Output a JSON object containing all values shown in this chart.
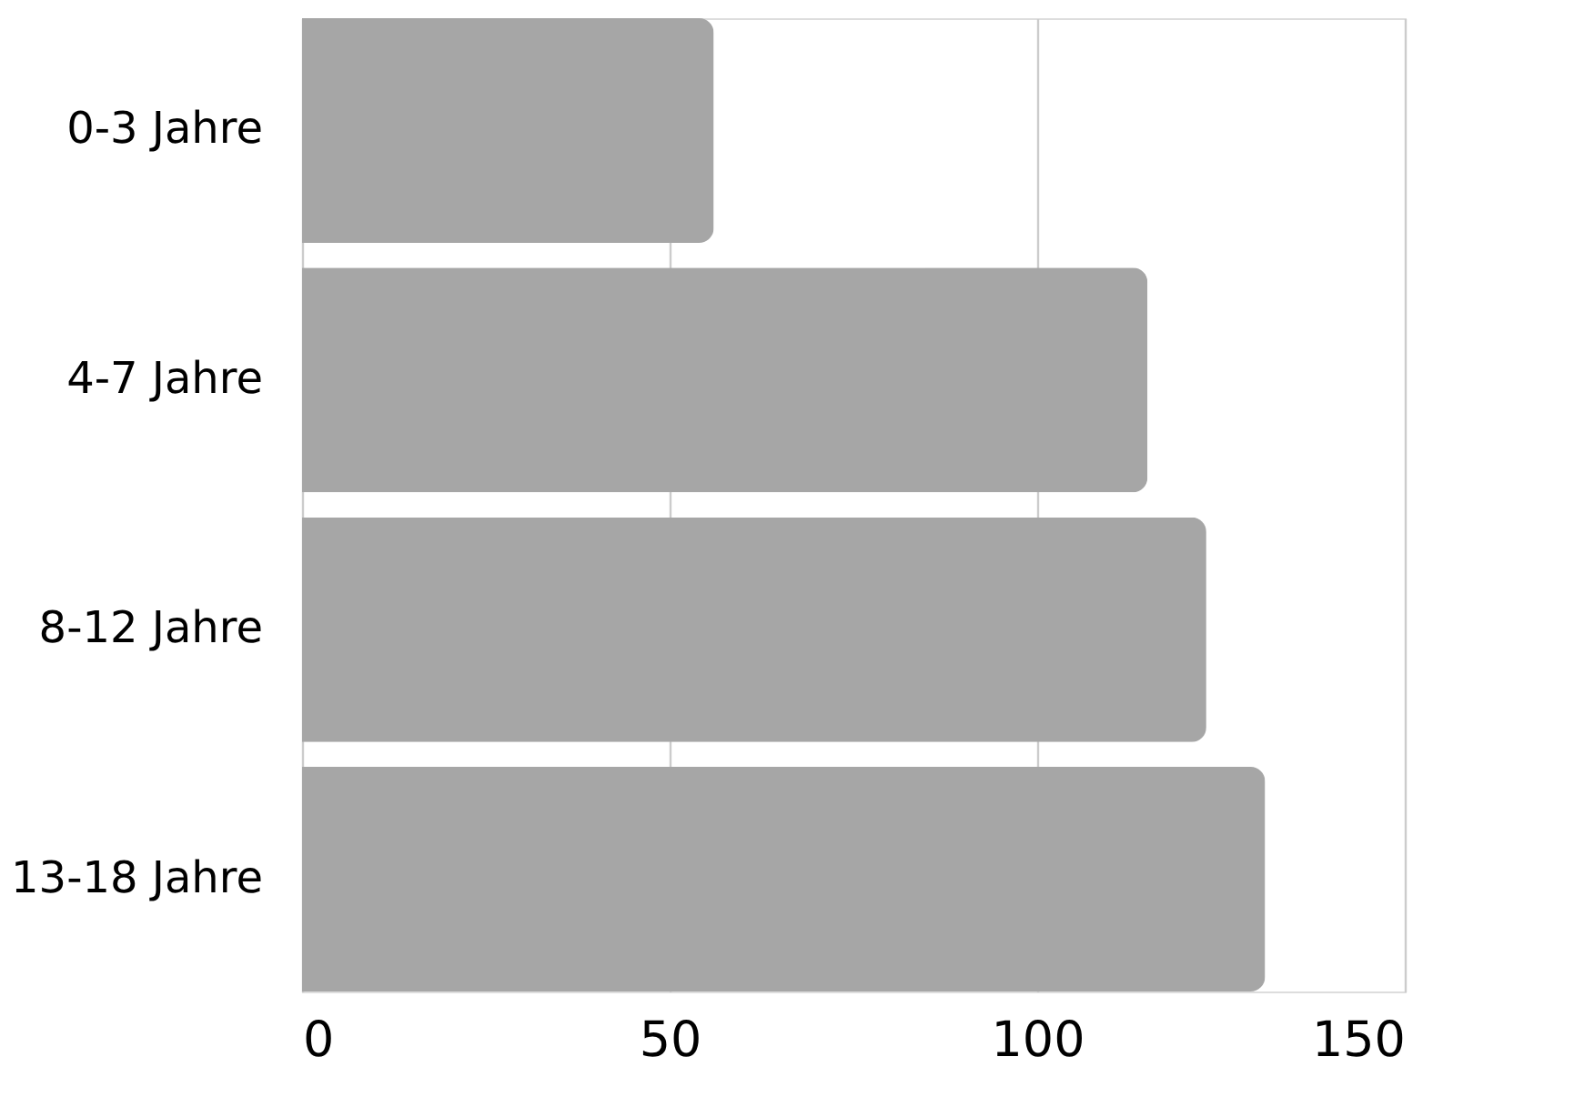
{
  "chart_data": {
    "type": "bar",
    "orientation": "horizontal",
    "categories": [
      "0-3 Jahre",
      "4-7 Jahre",
      "8-12 Jahre",
      "13-18 Jahre"
    ],
    "values": [
      56,
      115,
      123,
      131
    ],
    "color": "#a6a6a6",
    "xlim": [
      0,
      150
    ],
    "xticks": [
      0,
      50,
      100,
      150
    ],
    "grid": "x"
  }
}
